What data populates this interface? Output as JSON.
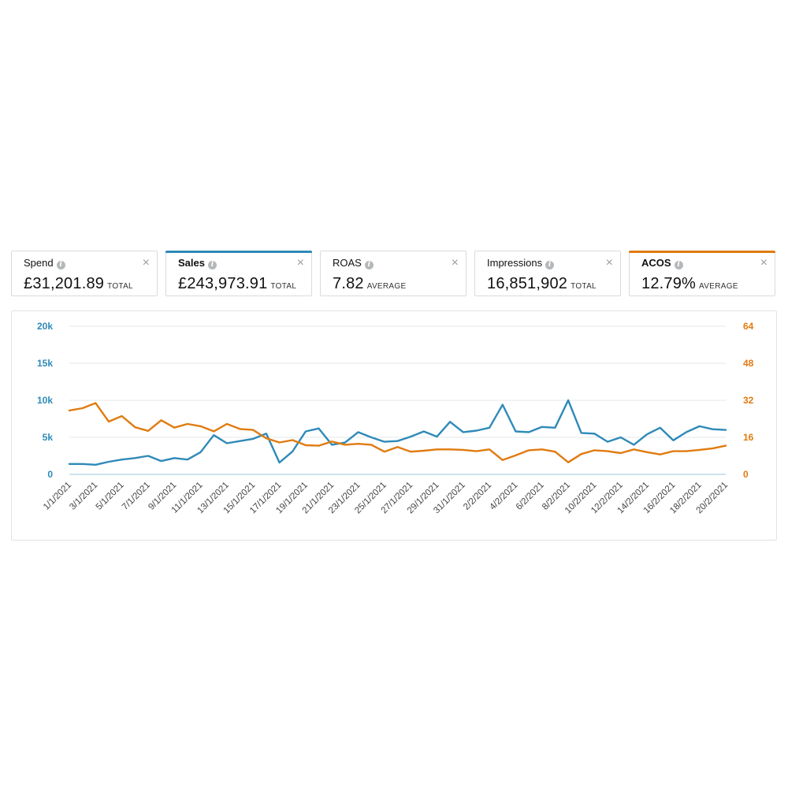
{
  "metrics": [
    {
      "name": "Spend",
      "value": "£31,201.89",
      "aggregate": "TOTAL",
      "selected": false,
      "accent": ""
    },
    {
      "name": "Sales",
      "value": "£243,973.91",
      "aggregate": "TOTAL",
      "selected": true,
      "accent": "#2e8ab8"
    },
    {
      "name": "ROAS",
      "value": "7.82",
      "aggregate": "AVERAGE",
      "selected": false,
      "accent": ""
    },
    {
      "name": "Impressions",
      "value": "16,851,902",
      "aggregate": "TOTAL",
      "selected": false,
      "accent": ""
    },
    {
      "name": "ACOS",
      "value": "12.79%",
      "aggregate": "AVERAGE",
      "selected": true,
      "accent": "#e07b10"
    }
  ],
  "icons": {
    "info": "info-icon",
    "close": "close-icon"
  },
  "chart_data": {
    "type": "line",
    "x_labels": [
      "1/1/2021",
      "3/1/2021",
      "5/1/2021",
      "7/1/2021",
      "9/1/2021",
      "11/1/2021",
      "13/1/2021",
      "15/1/2021",
      "17/1/2021",
      "19/1/2021",
      "21/1/2021",
      "23/1/2021",
      "25/1/2021",
      "27/1/2021",
      "29/1/2021",
      "31/1/2021",
      "2/2/2021",
      "4/2/2021",
      "6/2/2021",
      "8/2/2021",
      "10/2/2021",
      "12/2/2021",
      "14/2/2021",
      "16/2/2021",
      "18/2/2021",
      "20/2/2021"
    ],
    "y_left": {
      "ticks": [
        "0",
        "5k",
        "10k",
        "15k",
        "20k"
      ],
      "range": [
        0,
        20000
      ],
      "color": "#2e8ab8"
    },
    "y_right": {
      "ticks": [
        "0",
        "16",
        "32",
        "48",
        "64"
      ],
      "range": [
        0,
        64
      ],
      "color": "#e07b10"
    },
    "grid": true,
    "series": [
      {
        "axis": "left",
        "color": "#2e8ab8",
        "values": [
          1400,
          1400,
          1300,
          1700,
          2000,
          2200,
          2500,
          1800,
          2200,
          2000,
          3000,
          5300,
          4200,
          4500,
          4800,
          5500,
          1600,
          3100,
          5800,
          6200,
          4000,
          4300,
          5700,
          5000,
          4400,
          4500,
          5100,
          5800,
          5100,
          7100,
          5700,
          5900,
          6300,
          9400,
          5800,
          5700,
          6400,
          6300,
          10000,
          5600,
          5500,
          4400,
          5000,
          4000,
          5400,
          6300,
          4600,
          5700,
          6500,
          6100,
          6000
        ]
      },
      {
        "axis": "right",
        "color": "#e07b10",
        "values": [
          27.6,
          28.6,
          30.8,
          22.8,
          25.2,
          20.4,
          18.8,
          23.4,
          20.2,
          21.8,
          20.8,
          18.6,
          21.8,
          19.6,
          19.2,
          15.6,
          13.8,
          14.8,
          12.6,
          12.4,
          14.2,
          12.8,
          13.2,
          12.8,
          9.8,
          11.8,
          9.8,
          10.2,
          10.8,
          10.8,
          10.6,
          10.0,
          10.8,
          6.2,
          8.2,
          10.4,
          10.8,
          9.8,
          5.2,
          8.8,
          10.4,
          10.0,
          9.2,
          10.8,
          9.6,
          8.6,
          10.0,
          10.0,
          10.6,
          11.2,
          12.4
        ]
      }
    ]
  }
}
